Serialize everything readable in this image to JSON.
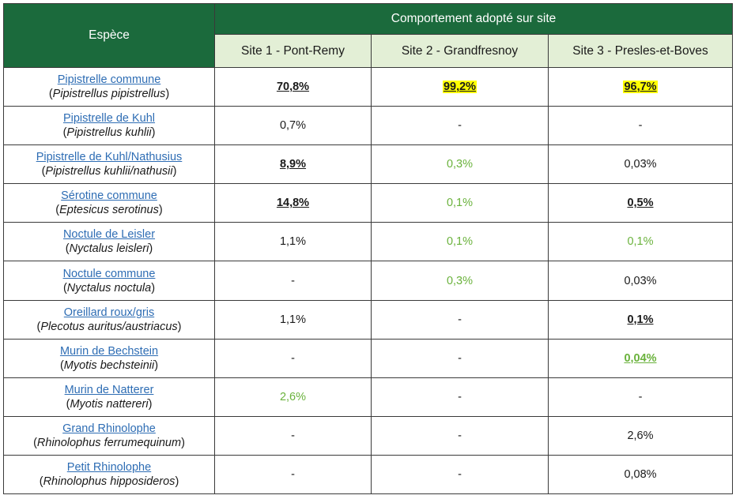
{
  "header": {
    "species_label": "Espèce",
    "group_label": "Comportement adopté sur site",
    "sites": [
      "Site 1 - Pont-Remy",
      "Site 2 - Grandfresnoy",
      "Site 3 - Presles-et-Boves"
    ]
  },
  "colors": {
    "header_green": "#1b6a3c",
    "subheader_bg": "#e3efd6",
    "link_blue": "#2e6db4",
    "value_green": "#6ab23c",
    "highlight_yellow": "#ffff00"
  },
  "rows": [
    {
      "name": "Pipistrelle commune",
      "sci": "Pipistrellus pipistrellus",
      "v": [
        {
          "t": "70,8%",
          "s": "bold"
        },
        {
          "t": "99,2%",
          "s": "hl"
        },
        {
          "t": "96,7%",
          "s": "hl"
        }
      ]
    },
    {
      "name": "Pipistrelle de Kuhl",
      "sci": "Pipistrellus kuhlii",
      "v": [
        {
          "t": "0,7%",
          "s": "plain"
        },
        {
          "t": "-",
          "s": "plain"
        },
        {
          "t": "-",
          "s": "plain"
        }
      ]
    },
    {
      "name": "Pipistrelle de Kuhl/Nathusius",
      "sci": "Pipistrellus kuhlii/nathusii",
      "v": [
        {
          "t": "8,9%",
          "s": "bold"
        },
        {
          "t": "0,3%",
          "s": "green"
        },
        {
          "t": "0,03%",
          "s": "plain"
        }
      ]
    },
    {
      "name": "Sérotine commune",
      "sci": "Eptesicus serotinus",
      "v": [
        {
          "t": "14,8%",
          "s": "bold"
        },
        {
          "t": "0,1%",
          "s": "green"
        },
        {
          "t": "0,5%",
          "s": "bold"
        }
      ]
    },
    {
      "name": "Noctule de Leisler",
      "sci": "Nyctalus leisleri",
      "v": [
        {
          "t": "1,1%",
          "s": "plain"
        },
        {
          "t": "0,1%",
          "s": "green"
        },
        {
          "t": "0,1%",
          "s": "green"
        }
      ]
    },
    {
      "name": "Noctule commune",
      "sci": "Nyctalus noctula",
      "v": [
        {
          "t": "-",
          "s": "plain"
        },
        {
          "t": "0,3%",
          "s": "green"
        },
        {
          "t": "0,03%",
          "s": "plain"
        }
      ]
    },
    {
      "name": "Oreillard roux/gris",
      "sci": "Plecotus auritus/austriacus",
      "v": [
        {
          "t": "1,1%",
          "s": "plain"
        },
        {
          "t": "-",
          "s": "plain"
        },
        {
          "t": "0,1%",
          "s": "bold"
        }
      ]
    },
    {
      "name": "Murin de Bechstein",
      "sci": "Myotis bechsteinii",
      "v": [
        {
          "t": "-",
          "s": "plain"
        },
        {
          "t": "-",
          "s": "plain"
        },
        {
          "t": "0,04%",
          "s": "green-bold"
        }
      ]
    },
    {
      "name": "Murin de Natterer",
      "sci": "Myotis nattereri",
      "v": [
        {
          "t": "2,6%",
          "s": "green"
        },
        {
          "t": "-",
          "s": "plain"
        },
        {
          "t": "-",
          "s": "plain"
        }
      ]
    },
    {
      "name": "Grand Rhinolophe",
      "sci": "Rhinolophus ferrumequinum",
      "v": [
        {
          "t": "-",
          "s": "plain"
        },
        {
          "t": "-",
          "s": "plain"
        },
        {
          "t": "2,6%",
          "s": "plain"
        }
      ]
    },
    {
      "name": "Petit Rhinolophe",
      "sci": "Rhinolophus hipposideros",
      "v": [
        {
          "t": "-",
          "s": "plain"
        },
        {
          "t": "-",
          "s": "plain"
        },
        {
          "t": "0,08%",
          "s": "plain"
        }
      ]
    }
  ]
}
